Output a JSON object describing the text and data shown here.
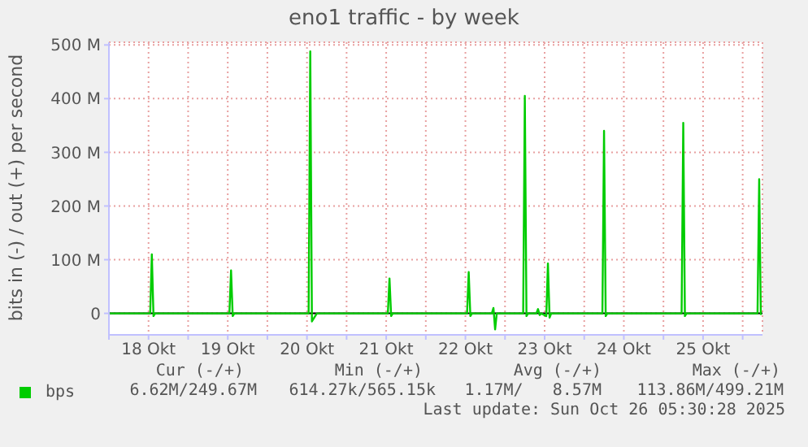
{
  "chart_data": {
    "type": "line",
    "title": "eno1 traffic - by week",
    "ylabel": "bits in (-) / out (+) per second",
    "series": [
      {
        "name": "bps",
        "color": "#00cc00",
        "x": [
          "2025-10-18T00:00",
          "2025-10-18T12:30",
          "2025-10-18T13:00",
          "2025-10-18T13:30",
          "2025-10-18T14:00",
          "2025-10-19T12:30",
          "2025-10-19T13:00",
          "2025-10-19T13:30",
          "2025-10-19T14:00",
          "2025-10-20T12:30",
          "2025-10-20T13:00",
          "2025-10-20T13:30",
          "2025-10-20T14:30",
          "2025-10-20T15:00",
          "2025-10-21T12:30",
          "2025-10-21T13:00",
          "2025-10-21T13:30",
          "2025-10-21T14:00",
          "2025-10-22T12:30",
          "2025-10-22T13:00",
          "2025-10-22T13:30",
          "2025-10-22T14:00",
          "2025-10-22T20:00",
          "2025-10-22T20:30",
          "2025-10-22T21:00",
          "2025-10-22T21:30",
          "2025-10-23T05:30",
          "2025-10-23T06:00",
          "2025-10-23T06:30",
          "2025-10-23T07:00",
          "2025-10-23T09:30",
          "2025-10-23T10:00",
          "2025-10-23T10:30",
          "2025-10-23T11:00",
          "2025-10-23T12:30",
          "2025-10-23T13:00",
          "2025-10-23T13:30",
          "2025-10-23T14:00",
          "2025-10-24T05:30",
          "2025-10-24T06:00",
          "2025-10-24T06:30",
          "2025-10-24T07:00",
          "2025-10-25T05:30",
          "2025-10-25T06:00",
          "2025-10-25T06:30",
          "2025-10-25T07:00",
          "2025-10-26T04:30",
          "2025-10-26T05:00",
          "2025-10-26T05:30"
        ],
        "values": [
          0,
          0,
          110,
          -5,
          0,
          0,
          80,
          -5,
          0,
          0,
          488,
          -15,
          -5,
          0,
          0,
          65,
          -5,
          0,
          0,
          77,
          -5,
          0,
          0,
          10,
          -30,
          0,
          0,
          405,
          -5,
          0,
          0,
          8,
          -3,
          0,
          -5,
          93,
          -8,
          0,
          0,
          340,
          -5,
          0,
          0,
          355,
          -5,
          0,
          0,
          250,
          -3
        ]
      }
    ],
    "xlim": [
      "2025-10-18T00:00",
      "2025-10-26T06:00"
    ],
    "xticks": [
      {
        "value": "2025-10-18T00:00",
        "label": null
      },
      {
        "value": "2025-10-18T12:00",
        "label": "18 Okt"
      },
      {
        "value": "2025-10-19T00:00",
        "label": null
      },
      {
        "value": "2025-10-19T12:00",
        "label": "19 Okt"
      },
      {
        "value": "2025-10-20T00:00",
        "label": null
      },
      {
        "value": "2025-10-20T12:00",
        "label": "20 Okt"
      },
      {
        "value": "2025-10-21T00:00",
        "label": null
      },
      {
        "value": "2025-10-21T12:00",
        "label": "21 Okt"
      },
      {
        "value": "2025-10-22T00:00",
        "label": null
      },
      {
        "value": "2025-10-22T12:00",
        "label": "22 Okt"
      },
      {
        "value": "2025-10-23T00:00",
        "label": null
      },
      {
        "value": "2025-10-23T12:00",
        "label": "23 Okt"
      },
      {
        "value": "2025-10-24T00:00",
        "label": null
      },
      {
        "value": "2025-10-24T12:00",
        "label": "24 Okt"
      },
      {
        "value": "2025-10-25T00:00",
        "label": null
      },
      {
        "value": "2025-10-25T12:00",
        "label": "25 Okt"
      },
      {
        "value": "2025-10-26T00:00",
        "label": null
      }
    ],
    "ylim": [
      -40,
      505
    ],
    "yticks": [
      0,
      {
        "value": 100,
        "label": "100 M"
      },
      {
        "value": 200,
        "label": "200 M"
      },
      {
        "value": 300,
        "label": "300 M"
      },
      {
        "value": 400,
        "label": "400 M"
      },
      {
        "value": 500,
        "label": "500 M"
      }
    ],
    "grid": true,
    "legend": "bottom left",
    "marker": "none",
    "line_style": "solid",
    "annotations": [
      "Cur (-/+)",
      "Min (-/+)",
      "Avg (-/+)",
      "Max (-/+)",
      "6.62M/249.67M",
      "614.27k/565.15k",
      "1.17M/   8.57M",
      "113.86M/499.21M",
      "Last update: Sun Oct 26 05:30:28 2025"
    ]
  }
}
